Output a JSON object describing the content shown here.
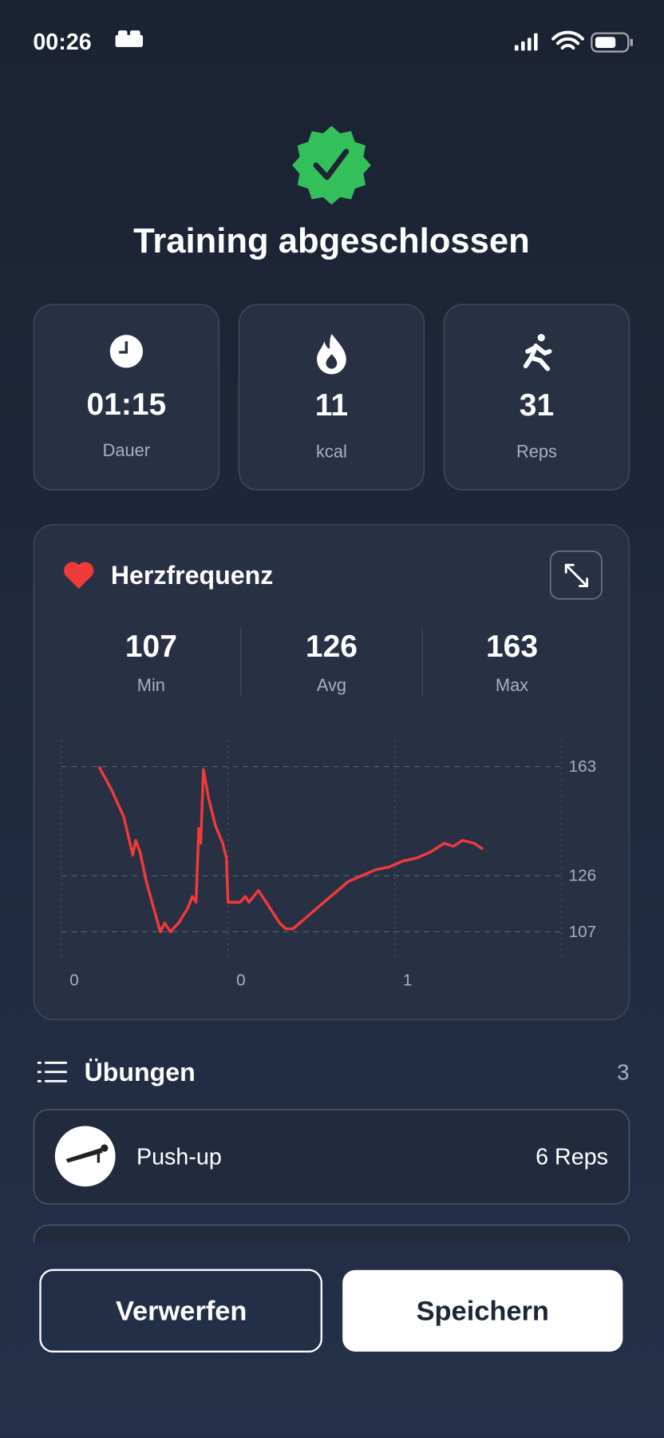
{
  "status_bar": {
    "time": "00:26"
  },
  "header": {
    "title": "Training abgeschlossen"
  },
  "stats": [
    {
      "value": "01:15",
      "label": "Dauer"
    },
    {
      "value": 11,
      "label": "kcal"
    },
    {
      "value": 31,
      "label": "Reps"
    }
  ],
  "heart_rate": {
    "title": "Herzfrequenz",
    "summary": [
      {
        "value": 107,
        "label": "Min"
      },
      {
        "value": 126,
        "label": "Avg"
      },
      {
        "value": 163,
        "label": "Max"
      }
    ],
    "chart": {
      "type": "line",
      "color": "#f03a3a",
      "x": [
        0.113,
        0.151,
        0.187,
        0.206,
        0.214,
        0.223,
        0.236,
        0.255,
        0.277,
        0.297,
        0.31,
        0.327,
        0.352,
        0.379,
        0.393,
        0.404,
        0.412,
        0.418,
        0.426,
        0.442,
        0.462,
        0.484,
        0.495,
        0.5,
        0.536,
        0.552,
        0.563,
        0.591,
        0.626,
        0.654,
        0.673,
        0.695,
        0.736,
        0.777,
        0.819,
        0.86,
        0.901,
        0.942,
        0.984,
        1.025,
        1.066,
        1.107,
        1.148,
        1.176,
        1.203,
        1.239,
        1.264
      ],
      "values": [
        163,
        155,
        146,
        137,
        133,
        138,
        134,
        124,
        115,
        107,
        110,
        107,
        110,
        115,
        119,
        117,
        142,
        137,
        162,
        152,
        143,
        137,
        132,
        117,
        117,
        119,
        117,
        121,
        115,
        110,
        108,
        108,
        112,
        116,
        120,
        124,
        126,
        128,
        129,
        131,
        132,
        134,
        137,
        136,
        138,
        137,
        135
      ],
      "xlim": [
        0,
        1.5
      ],
      "ylim": [
        98,
        172
      ],
      "xticks": [
        {
          "value": 0,
          "label": "0"
        },
        {
          "value": 0.5,
          "label": "0"
        },
        {
          "value": 1,
          "label": "1"
        }
      ],
      "yticks": [
        107,
        126,
        163
      ],
      "grid": true
    }
  },
  "exercises": {
    "title": "Übungen",
    "count": 3,
    "items": [
      {
        "name": "Push-up",
        "reps": "6 Reps"
      }
    ]
  },
  "buttons": {
    "discard": "Verwerfen",
    "save": "Speichern"
  }
}
